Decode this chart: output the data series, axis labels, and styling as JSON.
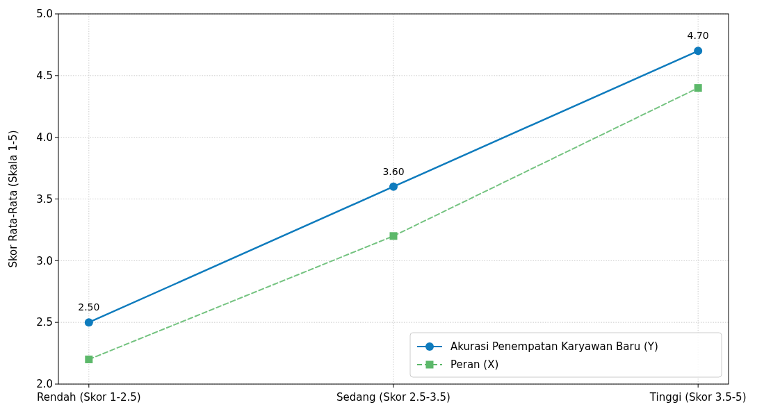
{
  "chart_data": {
    "type": "line",
    "ylabel": "Skor Rata-Rata (Skala 1-5)",
    "categories": [
      "Rendah (Skor 1-2.5)",
      "Sedang (Skor 2.5-3.5)",
      "Tinggi (Skor 3.5-5)"
    ],
    "series": [
      {
        "name": "Akurasi Penempatan Karyawan Baru (Y)",
        "color": "#0e7bbd",
        "values": [
          2.5,
          3.6,
          4.7
        ],
        "marker": "circle",
        "line_style": "solid",
        "value_labels": [
          "2.50",
          "3.60",
          "4.70"
        ]
      },
      {
        "name": "Peran (X)",
        "color": "#5cb86a",
        "values": [
          2.2,
          3.2,
          4.4
        ],
        "marker": "square",
        "line_style": "dashed"
      }
    ],
    "ylim": [
      2.0,
      5.0
    ],
    "yticks": [
      {
        "value": 2.0,
        "label": "2.0"
      },
      {
        "value": 2.5,
        "label": "2.5"
      },
      {
        "value": 3.0,
        "label": "3.0"
      },
      {
        "value": 3.5,
        "label": "3.5"
      },
      {
        "value": 4.0,
        "label": "4.0"
      },
      {
        "value": 4.5,
        "label": "4.5"
      },
      {
        "value": 5.0,
        "label": "5.0"
      }
    ],
    "grid": true,
    "legend": "bottom right"
  }
}
